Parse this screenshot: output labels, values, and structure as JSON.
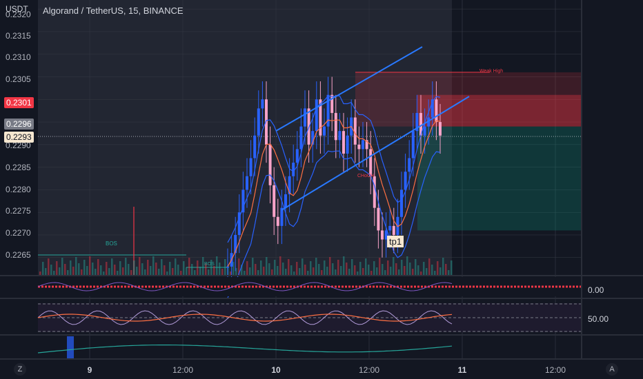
{
  "header": {
    "currency": "USDT",
    "symbol_title": "Algorand / TetherUS, 15, BINANCE"
  },
  "price_axis": {
    "labels": [
      "0.2320",
      "0.2315",
      "0.2310",
      "0.2305",
      "0.2300",
      "0.2295",
      "0.2290",
      "0.2285",
      "0.2280",
      "0.2275",
      "0.2270",
      "0.2265"
    ],
    "tags": [
      {
        "text": "0.2301",
        "bg": "#f23645",
        "fg": "#ffffff"
      },
      {
        "text": "0.2296",
        "bg": "#787b86",
        "fg": "#ffffff"
      },
      {
        "text": "0.2293",
        "bg": "#f6e7d0",
        "fg": "#131722"
      }
    ]
  },
  "time_axis": {
    "labels": [
      {
        "text": "9",
        "bold": true
      },
      {
        "text": "12:00",
        "bold": false
      },
      {
        "text": "10",
        "bold": true
      },
      {
        "text": "12:00",
        "bold": false
      },
      {
        "text": "11",
        "bold": true
      },
      {
        "text": "12:00",
        "bold": false
      }
    ]
  },
  "annotations": {
    "weak_high": "Weak High",
    "bos_1": "BOS",
    "bos_2": "BOS",
    "choch": "CHoCH",
    "tp1": "tp1"
  },
  "oscillators": {
    "osc1_value": "0.00",
    "osc2_value": "50.00"
  },
  "buttons": {
    "z": "Z",
    "a": "A"
  },
  "colors": {
    "bull": "#2962ff",
    "bear": "#f7a3c8",
    "bg": "#131722",
    "short_zone": "#f23645",
    "profit_zone": "#089981"
  },
  "chart_data": {
    "type": "candlestick",
    "symbol": "Algorand / TetherUS",
    "timeframe": "15",
    "exchange": "BINANCE",
    "ylim": [
      0.2261,
      0.2322
    ],
    "close_series": [
      0.2263,
      0.2266,
      0.227,
      0.2275,
      0.228,
      0.2283,
      0.2287,
      0.2292,
      0.2298,
      0.23,
      0.229,
      0.2281,
      0.2274,
      0.2272,
      0.2276,
      0.2279,
      0.2283,
      0.2286,
      0.2289,
      0.2294,
      0.2298,
      0.229,
      0.2293,
      0.23,
      0.2292,
      0.2294,
      0.2301,
      0.2297,
      0.2291,
      0.2293,
      0.2288,
      0.2292,
      0.2296,
      0.229,
      0.2289,
      0.2291,
      0.2289,
      0.2283,
      0.2276,
      0.2271,
      0.2269,
      0.2271,
      0.2272,
      0.227,
      0.2274,
      0.228,
      0.2284,
      0.2287,
      0.2293,
      0.2297,
      0.2292,
      0.2294,
      0.2296,
      0.23,
      0.2295,
      0.2292
    ],
    "levels": {
      "weak_high": 0.2306,
      "entry": 0.2294,
      "stop": 0.2301,
      "target": 0.2271
    },
    "oscillator_1": {
      "zero": 0.0
    },
    "oscillator_2": {
      "mid": 50.0
    }
  }
}
